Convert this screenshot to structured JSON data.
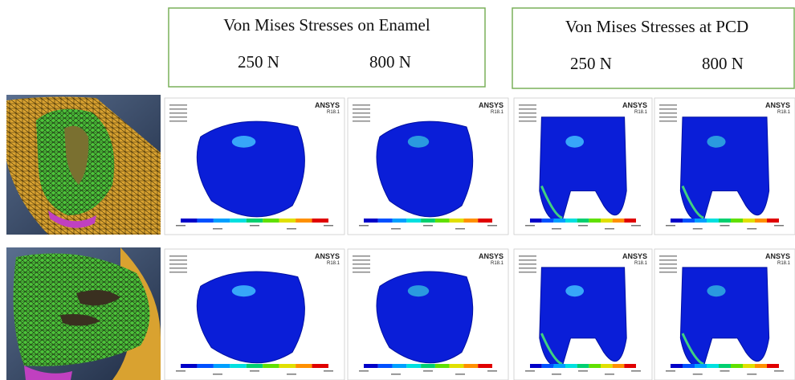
{
  "header": {
    "enamel": {
      "title": "Von Mises Stresses on Enamel",
      "loads": [
        "250 N",
        "800 N"
      ]
    },
    "pcd": {
      "title": "Von Mises Stresses at PCD",
      "loads": [
        "250 N",
        "800 N"
      ]
    }
  },
  "panels": [
    {
      "brand": "ANSYS",
      "version": "R18.1"
    },
    {
      "brand": "ANSYS",
      "version": "R18.1"
    },
    {
      "brand": "ANSYS",
      "version": "R18.1"
    },
    {
      "brand": "ANSYS",
      "version": "R18.1"
    },
    {
      "brand": "ANSYS",
      "version": "R18.1"
    },
    {
      "brand": "ANSYS",
      "version": "R18.1"
    },
    {
      "brand": "ANSYS",
      "version": "R18.1"
    },
    {
      "brand": "ANSYS",
      "version": "R18.1"
    }
  ]
}
